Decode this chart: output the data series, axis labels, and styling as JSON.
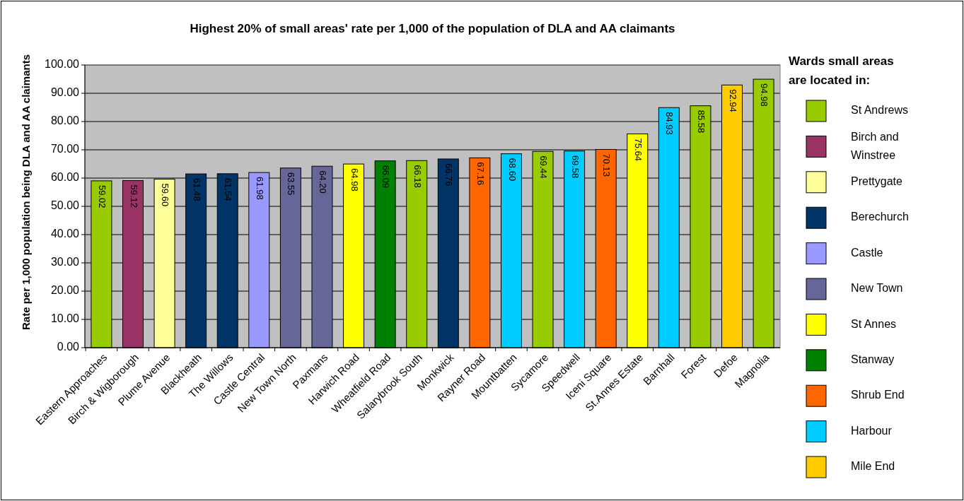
{
  "chart_data": {
    "type": "bar",
    "title": "Highest 20% of small areas' rate per 1,000 of the population of DLA and AA claimants",
    "ylabel": "Rate per 1,000 population being DLA and AA claimants",
    "legend_title": "Wards small areas are located in:",
    "legend": "right",
    "data_labels": true,
    "grid": "y",
    "categories": [
      "Eastern Approaches",
      "Birch & Wigborough",
      "Plume Avenue",
      "Blackheath",
      "The Willows",
      "Castle Central",
      "New Town North",
      "Paxmans",
      "Harwich Road",
      "Wheatfield Road",
      "Salarybrook South",
      "Monkwick",
      "Rayner Road",
      "Mountbatten",
      "Sycamore",
      "Speedwell",
      "Iceni Square",
      "St.Annes Estate",
      "Barnhall",
      "Forest",
      "Defoe",
      "Magnolia"
    ],
    "ylim": [
      0,
      100
    ],
    "yticks": [
      {
        "value": 0,
        "label": "0.00"
      },
      {
        "value": 10,
        "label": "10.00"
      },
      {
        "value": 20,
        "label": "20.00"
      },
      {
        "value": 30,
        "label": "30.00"
      },
      {
        "value": 40,
        "label": "40.00"
      },
      {
        "value": 50,
        "label": "50.00"
      },
      {
        "value": 60,
        "label": "60.00"
      },
      {
        "value": 70,
        "label": "70.00"
      },
      {
        "value": 80,
        "label": "80.00"
      },
      {
        "value": 90,
        "label": "90.00"
      },
      {
        "value": 100,
        "label": "100.00"
      }
    ],
    "series": [
      {
        "name": "St Andrews",
        "color": "#99cc00",
        "values": [
          59.02,
          null,
          null,
          null,
          null,
          null,
          null,
          null,
          null,
          null,
          66.18,
          null,
          null,
          null,
          69.44,
          null,
          null,
          null,
          null,
          85.58,
          null,
          94.98
        ]
      },
      {
        "name": "Birch and Winstree",
        "color": "#993366",
        "values": [
          null,
          59.12,
          null,
          null,
          null,
          null,
          null,
          null,
          null,
          null,
          null,
          null,
          null,
          null,
          null,
          null,
          null,
          null,
          null,
          null,
          null,
          null
        ]
      },
      {
        "name": "Prettygate",
        "color": "#ffff99",
        "values": [
          null,
          null,
          59.6,
          null,
          null,
          null,
          null,
          null,
          null,
          null,
          null,
          null,
          null,
          null,
          null,
          null,
          null,
          null,
          null,
          null,
          null,
          null
        ],
        "value_labels": [
          null,
          null,
          "59.60",
          null,
          null,
          null,
          null,
          null,
          null,
          null,
          null,
          null,
          null,
          null,
          null,
          null,
          null,
          null,
          null,
          null,
          null,
          null
        ]
      },
      {
        "name": "Berechurch",
        "color": "#003366",
        "values": [
          null,
          null,
          null,
          61.48,
          61.54,
          null,
          null,
          null,
          null,
          null,
          null,
          66.76,
          null,
          null,
          null,
          null,
          null,
          null,
          null,
          null,
          null,
          null
        ]
      },
      {
        "name": "Castle",
        "color": "#9999ff",
        "values": [
          null,
          null,
          null,
          null,
          null,
          61.98,
          null,
          null,
          null,
          null,
          null,
          null,
          null,
          null,
          null,
          null,
          null,
          null,
          null,
          null,
          null,
          null
        ]
      },
      {
        "name": "New Town",
        "color": "#666699",
        "values": [
          null,
          null,
          null,
          null,
          null,
          null,
          63.55,
          64.2,
          null,
          null,
          null,
          null,
          null,
          null,
          null,
          null,
          null,
          null,
          null,
          null,
          null,
          null
        ],
        "value_labels": [
          null,
          null,
          null,
          null,
          null,
          null,
          "63.55",
          "64.20",
          null,
          null,
          null,
          null,
          null,
          null,
          null,
          null,
          null,
          null,
          null,
          null,
          null,
          null
        ]
      },
      {
        "name": "St Annes",
        "color": "#ffff00",
        "values": [
          null,
          null,
          null,
          null,
          null,
          null,
          null,
          null,
          64.98,
          null,
          null,
          null,
          null,
          null,
          null,
          null,
          null,
          75.64,
          null,
          null,
          null,
          null
        ]
      },
      {
        "name": "Stanway",
        "color": "#008000",
        "values": [
          null,
          null,
          null,
          null,
          null,
          null,
          null,
          null,
          null,
          66.09,
          null,
          null,
          null,
          null,
          null,
          null,
          null,
          null,
          null,
          null,
          null,
          null
        ]
      },
      {
        "name": "Shrub End",
        "color": "#ff6600",
        "values": [
          null,
          null,
          null,
          null,
          null,
          null,
          null,
          null,
          null,
          null,
          null,
          null,
          67.16,
          null,
          null,
          null,
          70.13,
          null,
          null,
          null,
          null,
          null
        ]
      },
      {
        "name": "Harbour",
        "color": "#00ccff",
        "values": [
          null,
          null,
          null,
          null,
          null,
          null,
          null,
          null,
          null,
          null,
          null,
          null,
          null,
          68.6,
          null,
          69.58,
          null,
          null,
          84.93,
          null,
          null,
          null
        ],
        "value_labels": [
          null,
          null,
          null,
          null,
          null,
          null,
          null,
          null,
          null,
          null,
          null,
          null,
          null,
          "68.60",
          null,
          "69.58",
          null,
          null,
          "84.93",
          null,
          null,
          null
        ]
      },
      {
        "name": "Mile End",
        "color": "#ffcc00",
        "values": [
          null,
          null,
          null,
          null,
          null,
          null,
          null,
          null,
          null,
          null,
          null,
          null,
          null,
          null,
          null,
          null,
          null,
          null,
          null,
          null,
          92.94,
          null
        ]
      }
    ]
  }
}
